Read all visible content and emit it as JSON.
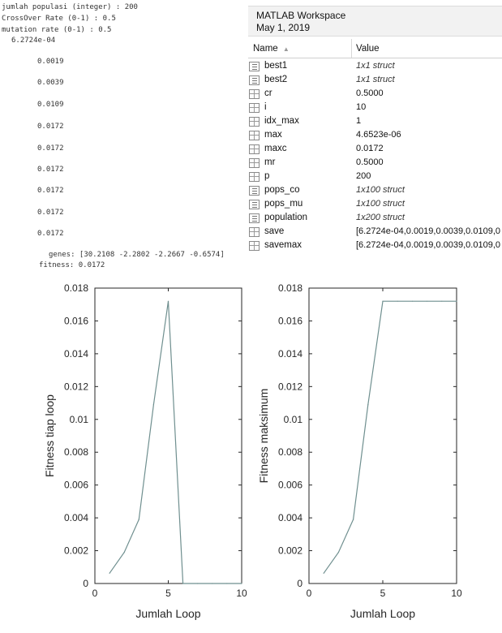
{
  "console": {
    "lines": [
      "jumlah populasi (integer) : 200",
      "CrossOver Rate (0-1) : 0.5",
      "mutation rate (0-1) : 0.5",
      "6.2724e-04",
      "0.0019",
      "0.0039",
      "0.0109",
      "0.0172",
      "0.0172",
      "0.0172",
      "0.0172",
      "0.0172",
      "0.0172",
      "genes: [30.2108 -2.2802 -2.2667 -0.6574]",
      "fitness: 0.0172"
    ]
  },
  "workspace": {
    "title": "MATLAB Workspace",
    "date": "May 1, 2019",
    "col_name": "Name",
    "col_value": "Value",
    "variables": [
      {
        "name": "best1",
        "value": "1x1 struct",
        "kind": "struct"
      },
      {
        "name": "best2",
        "value": "1x1 struct",
        "kind": "struct"
      },
      {
        "name": "cr",
        "value": "0.5000",
        "kind": "grid"
      },
      {
        "name": "i",
        "value": "10",
        "kind": "grid"
      },
      {
        "name": "idx_max",
        "value": "1",
        "kind": "grid"
      },
      {
        "name": "max",
        "value": "4.6523e-06",
        "kind": "grid"
      },
      {
        "name": "maxc",
        "value": "0.0172",
        "kind": "grid"
      },
      {
        "name": "mr",
        "value": "0.5000",
        "kind": "grid"
      },
      {
        "name": "p",
        "value": "200",
        "kind": "grid"
      },
      {
        "name": "pops_co",
        "value": "1x100 struct",
        "kind": "struct"
      },
      {
        "name": "pops_mu",
        "value": "1x100 struct",
        "kind": "struct"
      },
      {
        "name": "population",
        "value": "1x200 struct",
        "kind": "struct"
      },
      {
        "name": "save",
        "value": "[6.2724e-04,0.0019,0.0039,0.0109,0",
        "kind": "grid"
      },
      {
        "name": "savemax",
        "value": "[6.2724e-04,0.0019,0.0039,0.0109,0",
        "kind": "grid"
      }
    ]
  },
  "chart_data": [
    {
      "type": "line",
      "xlabel": "Jumlah Loop",
      "ylabel": "Fitness tiap loop",
      "xlim": [
        0,
        10
      ],
      "ylim": [
        0,
        0.018
      ],
      "xticks": [
        "0",
        "5",
        "10"
      ],
      "yticks": [
        "0",
        "0.002",
        "0.004",
        "0.006",
        "0.008",
        "0.01",
        "0.012",
        "0.014",
        "0.016",
        "0.018"
      ],
      "x": [
        1,
        2,
        3,
        4,
        5,
        6,
        7,
        8,
        9,
        10
      ],
      "y": [
        0.00062724,
        0.0019,
        0.0039,
        0.0109,
        0.0172,
        0,
        0,
        0,
        0,
        0
      ],
      "color": "#6f8f8f"
    },
    {
      "type": "line",
      "xlabel": "Jumlah Loop",
      "ylabel": "Fitness maksimum",
      "xlim": [
        0,
        10
      ],
      "ylim": [
        0,
        0.018
      ],
      "xticks": [
        "0",
        "5",
        "10"
      ],
      "yticks": [
        "0",
        "0.002",
        "0.004",
        "0.006",
        "0.008",
        "0.01",
        "0.012",
        "0.014",
        "0.016",
        "0.018"
      ],
      "x": [
        1,
        2,
        3,
        4,
        5,
        6,
        7,
        8,
        9,
        10
      ],
      "y": [
        0.00062724,
        0.0019,
        0.0039,
        0.0109,
        0.0172,
        0.0172,
        0.0172,
        0.0172,
        0.0172,
        0.0172
      ],
      "color": "#6f8f8f"
    }
  ]
}
